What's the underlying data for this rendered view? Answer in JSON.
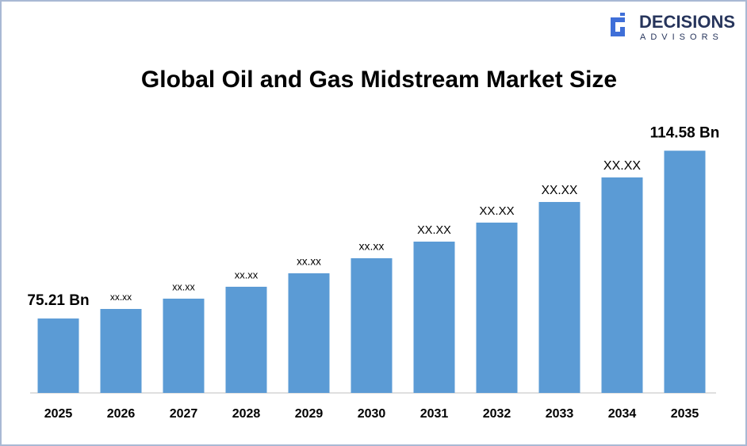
{
  "chart_data": {
    "type": "bar",
    "title": "Global Oil and Gas Midstream Market Size",
    "brand": {
      "name": "DECISIONS",
      "sub": "ADVISORS"
    },
    "categories": [
      "2025",
      "2026",
      "2027",
      "2028",
      "2029",
      "2030",
      "2031",
      "2032",
      "2033",
      "2034",
      "2035"
    ],
    "values": [
      75.21,
      77.45,
      79.87,
      82.66,
      85.82,
      89.35,
      93.25,
      97.71,
      102.55,
      108.31,
      114.58
    ],
    "value_labels": [
      "75.21 Bn",
      "xx.xx",
      "xx.xx",
      "xx.xx",
      "xx.xx",
      "xx.xx",
      "XX.XX",
      "XX.XX",
      "XX.XX",
      "XX.XX",
      "114.58 Bn"
    ],
    "color": "#5b9bd5",
    "ylim": [
      57.75,
      122.06
    ]
  }
}
